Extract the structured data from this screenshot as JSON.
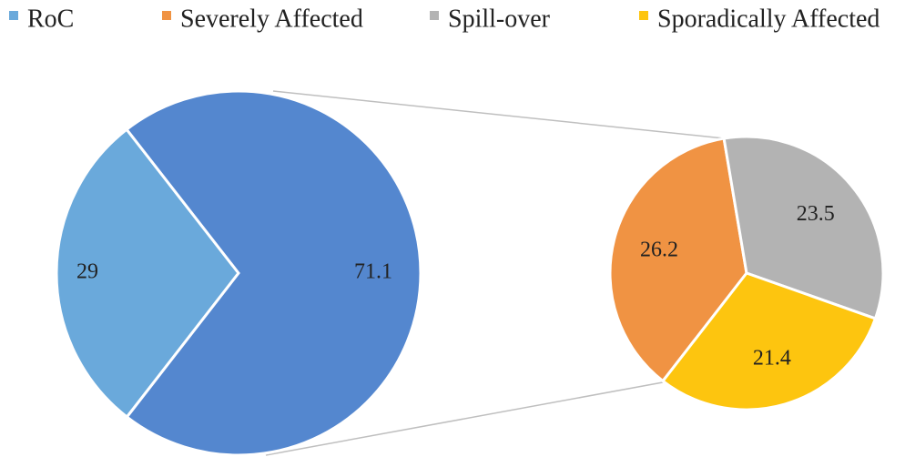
{
  "chart_data": {
    "type": "pie-of-pie",
    "main": {
      "categories": [
        "RoC",
        null
      ],
      "values": [
        29,
        71.1
      ],
      "colors": [
        "#6aa9db",
        "#5487cf"
      ]
    },
    "secondary": {
      "categories": [
        "Severely Affected",
        "Spill-over",
        "Sporadically Affected"
      ],
      "values": [
        26.2,
        23.5,
        21.4
      ],
      "colors": [
        "#f09343",
        "#b3b3b3",
        "#fdc50f"
      ]
    }
  }
}
